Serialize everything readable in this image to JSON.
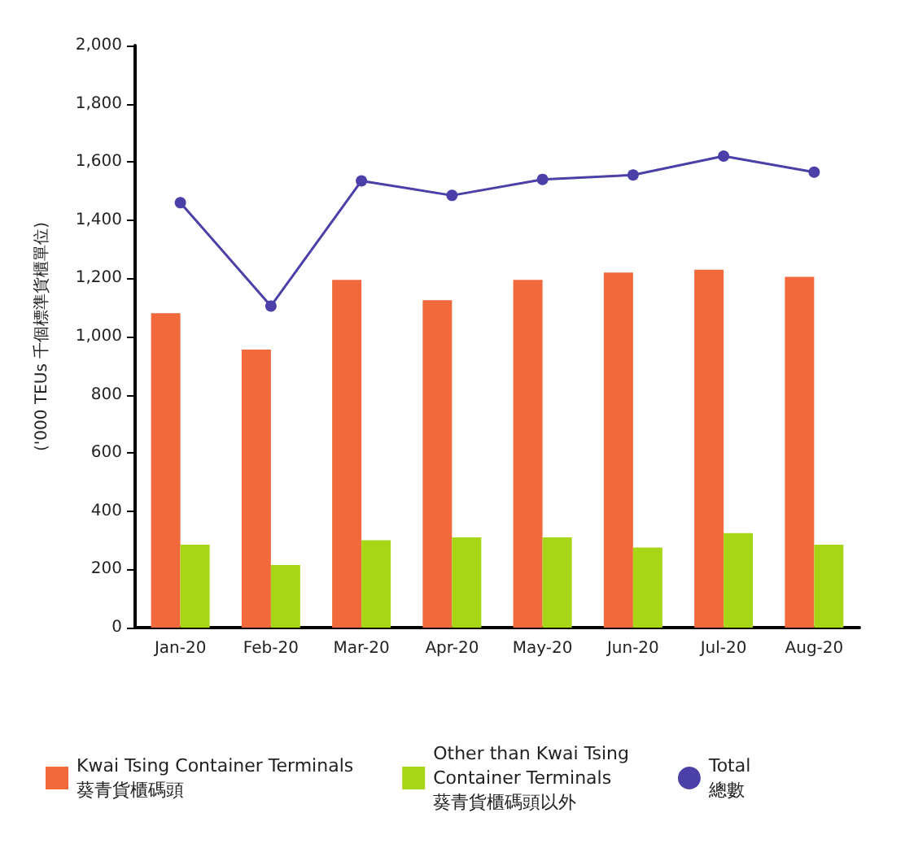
{
  "chart_data": {
    "type": "bar",
    "ylabel": "('000 TEUs 千個標準貨櫃單位)",
    "categories": [
      "Jan-20",
      "Feb-20",
      "Mar-20",
      "Apr-20",
      "May-20",
      "Jun-20",
      "Jul-20",
      "Aug-20"
    ],
    "series": [
      {
        "name": "Kwai Tsing Container Terminals\n葵青貨櫃碼頭",
        "color": "#f26a3c",
        "values": [
          1080,
          955,
          1195,
          1125,
          1195,
          1220,
          1230,
          1205
        ]
      },
      {
        "name": "Other than Kwai Tsing\nContainer Terminals\n葵青貨櫃碼頭以外",
        "color": "#a6d616",
        "values": [
          285,
          215,
          300,
          310,
          310,
          275,
          325,
          285
        ]
      },
      {
        "name": "Total\n總數",
        "type": "line",
        "color": "#4b3fa8",
        "marker": "circle",
        "values": [
          1460,
          1105,
          1535,
          1485,
          1540,
          1555,
          1620,
          1565
        ]
      }
    ],
    "ylim": [
      0,
      2000
    ],
    "yticks": [
      0,
      200,
      400,
      600,
      800,
      {
        "value": 1000,
        "label": "1,000"
      },
      {
        "value": 1200,
        "label": "1,200"
      },
      {
        "value": 1400,
        "label": "1,400"
      },
      {
        "value": 1600,
        "label": "1,600"
      },
      {
        "value": 1800,
        "label": "1,800"
      },
      {
        "value": 2000,
        "label": "2,000"
      }
    ],
    "grid": false,
    "legend": "bottom"
  }
}
